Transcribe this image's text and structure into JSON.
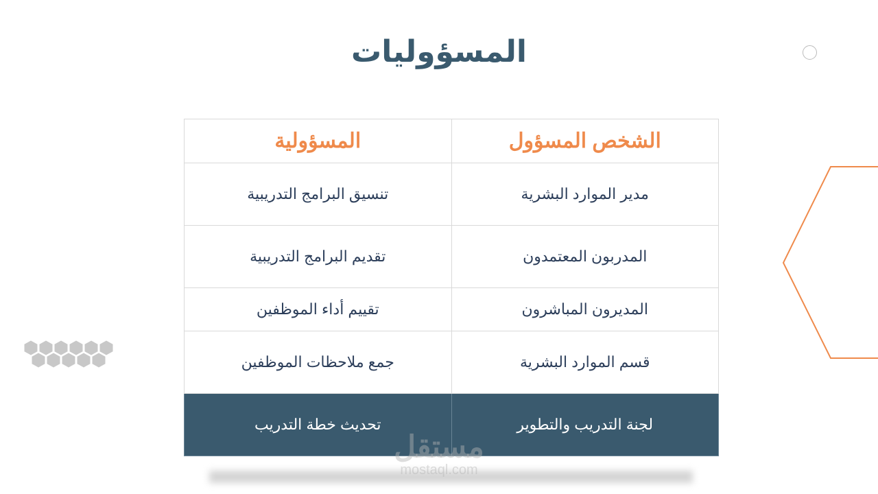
{
  "title": "المسؤوليات",
  "table": {
    "headers": [
      "الشخص المسؤول",
      "المسؤولية"
    ],
    "rows": [
      [
        "مدير الموارد البشرية",
        "تنسيق البرامج التدريبية"
      ],
      [
        "المدربون المعتمدون",
        "تقديم البرامج التدريبية"
      ],
      [
        "المديرون المباشرون",
        "تقييم أداء الموظفين"
      ],
      [
        "قسم الموارد البشرية",
        "جمع ملاحظات الموظفين"
      ],
      [
        "لجنة التدريب والتطوير",
        "تحديث خطة التدريب"
      ]
    ]
  },
  "watermark": {
    "arabic": "مستقل",
    "latin": "mostaql.com"
  },
  "colors": {
    "title": "#3a5a6e",
    "header": "#ef8a4b",
    "highlight_row": "#3a5a6e",
    "accent_outline": "#ef8a4b"
  }
}
